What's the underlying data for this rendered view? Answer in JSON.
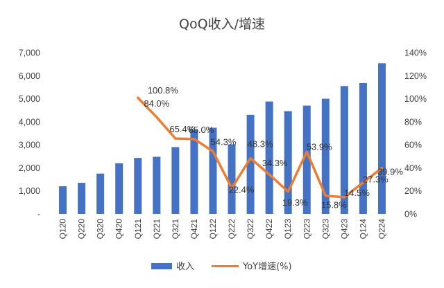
{
  "chart_data": {
    "type": "bar",
    "title": "QoQ收入/增速",
    "categories": [
      "Q120",
      "Q220",
      "Q320",
      "Q420",
      "Q121",
      "Q221",
      "Q321",
      "Q421",
      "Q122",
      "Q222",
      "Q322",
      "Q422",
      "Q123",
      "Q223",
      "Q323",
      "Q423",
      "Q124",
      "Q224"
    ],
    "series": [
      {
        "name": "收入",
        "type": "bar",
        "axis": "left",
        "color": "#4472c4",
        "values": [
          1200,
          1350,
          1750,
          2200,
          2430,
          2480,
          2900,
          3650,
          3740,
          3020,
          4300,
          4880,
          4460,
          4700,
          5000,
          5550,
          5680,
          6540
        ]
      },
      {
        "name": "YoY增速(%)",
        "type": "line",
        "axis": "right",
        "color": "#ed7d31",
        "values": [
          null,
          null,
          null,
          null,
          100.8,
          84.0,
          65.4,
          65.0,
          54.3,
          22.4,
          48.3,
          34.3,
          19.3,
          53.9,
          15.8,
          14.5,
          27.3,
          39.9
        ],
        "labels": [
          "",
          "",
          "",
          "",
          "100.8%",
          "84.0%",
          "65.4%",
          "65.0%",
          "54.3%",
          "22.4%",
          "48.3%",
          "34.3%",
          "19.3%",
          "53.9%",
          "15.8%",
          "14.5%",
          "27.3%",
          "39.9%"
        ]
      }
    ],
    "y_left": {
      "min": 0,
      "max": 7000,
      "ticks": [
        "-",
        "1,000",
        "2,000",
        "3,000",
        "4,000",
        "5,000",
        "6,000",
        "7,000"
      ]
    },
    "y_right": {
      "min": 0,
      "max": 140,
      "ticks": [
        "0%",
        "20%",
        "40%",
        "60%",
        "80%",
        "100%",
        "120%",
        "140%"
      ]
    },
    "grid": false,
    "legend": "bottom"
  }
}
